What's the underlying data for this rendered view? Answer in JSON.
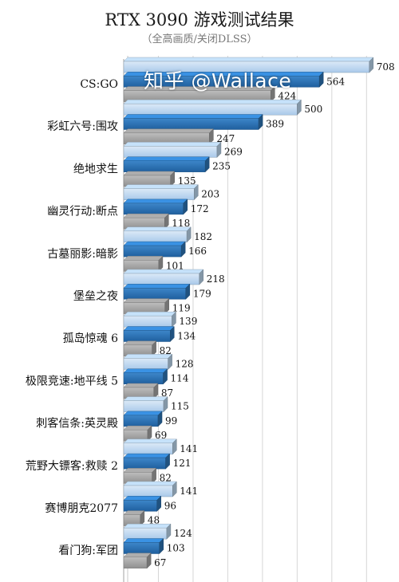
{
  "chart_data": {
    "type": "bar",
    "orientation": "horizontal",
    "title": "RTX 3090 游戏测试结果",
    "subtitle": "（全高画质/关闭DLSS）",
    "categories": [
      "CS:GO",
      "彩虹六号:围攻",
      "绝地求生",
      "幽灵行动:断点",
      "古墓丽影:暗影",
      "堡垒之夜",
      "孤岛惊魂 6",
      "极限竞速:地平线 5",
      "刺客信条:英灵殿",
      "荒野大镖客:救赎 2",
      "赛博朋克2077",
      "看门狗:军团"
    ],
    "series": [
      {
        "values": [
          708,
          500,
          269,
          203,
          182,
          218,
          139,
          128,
          115,
          141,
          141,
          124
        ],
        "color": "#bdd7ee"
      },
      {
        "values": [
          564,
          389,
          235,
          172,
          166,
          179,
          134,
          114,
          99,
          121,
          96,
          103
        ],
        "color": "#2e75b6"
      },
      {
        "values": [
          424,
          247,
          135,
          118,
          101,
          119,
          82,
          87,
          69,
          82,
          48,
          67
        ],
        "color": "#a6a6a6"
      }
    ],
    "xlim": [
      0,
      720
    ],
    "grid": true,
    "legend": "none"
  },
  "watermark": "知乎 @Wallace"
}
